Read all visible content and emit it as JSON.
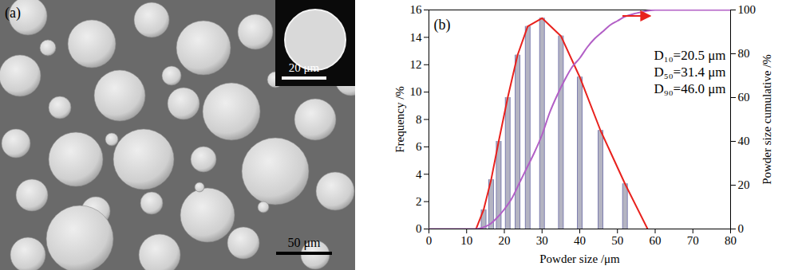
{
  "chart_data": {
    "type": "bar",
    "x_label": "Powder size /μm",
    "y_label": "Frequency /%",
    "y2_label": "Powder size cumulative /%",
    "xlim": [
      0,
      80
    ],
    "xticks": [
      0,
      10,
      20,
      30,
      40,
      50,
      60,
      70,
      80
    ],
    "ylim": [
      0,
      16
    ],
    "yticks": [
      0,
      2,
      4,
      6,
      8,
      10,
      12,
      14,
      16
    ],
    "y2lim": [
      0,
      100
    ],
    "y2ticks": [
      0,
      20,
      40,
      60,
      80,
      100
    ],
    "series": [
      {
        "type": "bar",
        "color": "#b4b4c2",
        "x": [
          14.5,
          16.5,
          18.5,
          20.9,
          23.5,
          26.2,
          30,
          35,
          40,
          45.5,
          52
        ],
        "values": [
          1.4,
          3.6,
          6.4,
          9.6,
          12.7,
          14.8,
          15.4,
          14.1,
          11.1,
          7.2,
          3.3
        ]
      },
      {
        "type": "line",
        "color": "#e8211d",
        "x": [
          12.5,
          14.5,
          16.5,
          18.5,
          20.9,
          23.5,
          26.2,
          30,
          35,
          40,
          45.5,
          52,
          58
        ],
        "values": [
          0,
          1.4,
          3.6,
          6.4,
          9.6,
          12.7,
          14.8,
          15.4,
          14.1,
          11.1,
          7.2,
          3.3,
          0
        ]
      },
      {
        "type": "line",
        "color": "#b25fc6",
        "axis": "y2",
        "x": [
          0,
          10,
          12,
          14,
          16,
          18,
          20,
          22,
          24,
          26,
          28,
          30,
          32,
          34,
          36,
          38,
          40,
          42,
          44,
          46,
          48,
          50,
          52,
          55,
          58,
          60,
          70,
          80
        ],
        "values": [
          0,
          0,
          0,
          0.5,
          2,
          5,
          9,
          14,
          21,
          28,
          35,
          43,
          53,
          61,
          68,
          74,
          78,
          83,
          87,
          90,
          93,
          95,
          97,
          98.5,
          99.6,
          100,
          100,
          100
        ]
      }
    ],
    "annotations": [
      "(b)",
      "D₁₀=20.5 μm",
      "D₅₀=31.4 μm",
      "D₉₀=46.0 μm"
    ]
  },
  "micrograph": {
    "panel_label": "(a)",
    "scale_bar": "50 μm",
    "inset_scale_bar": "20 μm"
  }
}
